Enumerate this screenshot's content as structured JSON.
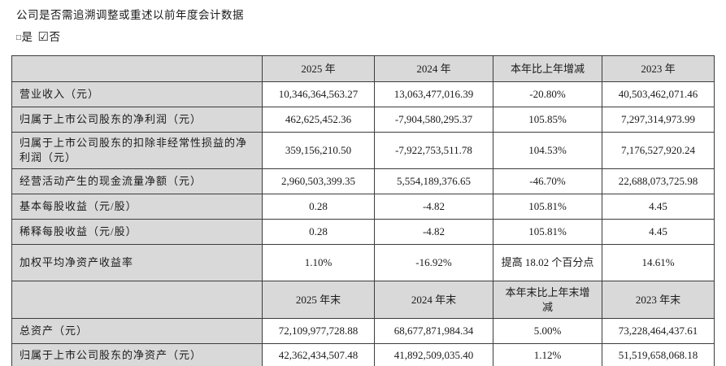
{
  "document": {
    "question": "公司是否需追溯调整或重述以前年度会计数据",
    "options": {
      "yes_glyph": "□",
      "yes_label": "是",
      "no_glyph": "☑",
      "no_label": "否",
      "selected": "否"
    }
  },
  "colors": {
    "header_bg": "#d9d9d9",
    "border": "#3c3c3c",
    "text": "#1a1a1a"
  },
  "table": {
    "header_row_annual": {
      "label": "",
      "cols": [
        "2025 年",
        "2024 年",
        "本年比上年增减",
        "2023 年"
      ]
    },
    "rows_annual": [
      {
        "label": "营业收入（元）",
        "values": [
          "10,346,364,563.27",
          "13,063,477,016.39",
          "-20.80%",
          "40,503,462,071.46"
        ]
      },
      {
        "label": "归属于上市公司股东的净利润（元）",
        "values": [
          "462,625,452.36",
          "-7,904,580,295.37",
          "105.85%",
          "7,297,314,973.99"
        ]
      },
      {
        "label": "归属于上市公司股东的扣除非经常性损益的净利润（元）",
        "values": [
          "359,156,210.50",
          "-7,922,753,511.78",
          "104.53%",
          "7,176,527,920.24"
        ]
      },
      {
        "label": "经营活动产生的现金流量净额（元）",
        "values": [
          "2,960,503,399.35",
          "5,554,189,376.65",
          "-46.70%",
          "22,688,073,725.98"
        ]
      },
      {
        "label": "基本每股收益（元/股）",
        "values": [
          "0.28",
          "-4.82",
          "105.81%",
          "4.45"
        ]
      },
      {
        "label": "稀释每股收益（元/股）",
        "values": [
          "0.28",
          "-4.82",
          "105.81%",
          "4.45"
        ]
      },
      {
        "label": "加权平均净资产收益率",
        "values": [
          "1.10%",
          "-16.92%",
          "提高 18.02 个百分点",
          "14.61%"
        ]
      }
    ],
    "header_row_period_end": {
      "label": "",
      "cols": [
        "2025 年末",
        "2024 年末",
        "本年末比上年末增减",
        "2023 年末"
      ]
    },
    "rows_period_end": [
      {
        "label": "总资产（元）",
        "values": [
          "72,109,977,728.88",
          "68,677,871,984.34",
          "5.00%",
          "73,228,464,437.61"
        ]
      },
      {
        "label": "归属于上市公司股东的净资产（元）",
        "values": [
          "42,362,434,507.48",
          "41,892,509,035.40",
          "1.12%",
          "51,519,658,068.18"
        ]
      }
    ]
  }
}
